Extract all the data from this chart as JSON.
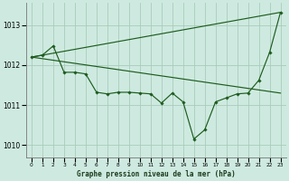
{
  "title": "Graphe pression niveau de la mer (hPa)",
  "background_color": "#ceeae0",
  "grid_color": "#aaccbb",
  "line_color": "#1e5c1e",
  "ylim": [
    1009.7,
    1013.55
  ],
  "xlim": [
    -0.5,
    23.5
  ],
  "yticks": [
    1010,
    1011,
    1012,
    1013
  ],
  "xticks": [
    0,
    1,
    2,
    3,
    4,
    5,
    6,
    7,
    8,
    9,
    10,
    11,
    12,
    13,
    14,
    15,
    16,
    17,
    18,
    19,
    20,
    21,
    22,
    23
  ],
  "line1_x": [
    0,
    23
  ],
  "line1_y": [
    1012.2,
    1013.32
  ],
  "line2_x": [
    0,
    23
  ],
  "line2_y": [
    1012.2,
    1011.3
  ],
  "line3_y": [
    1012.2,
    1012.25,
    1012.48,
    1011.82,
    1011.82,
    1011.78,
    1011.32,
    1011.28,
    1011.32,
    1011.32,
    1011.3,
    1011.28,
    1011.05,
    1011.3,
    1011.08,
    1010.15,
    1010.38,
    1011.08,
    1011.18,
    1011.28,
    1011.3,
    1011.62,
    1012.32,
    1013.32
  ]
}
